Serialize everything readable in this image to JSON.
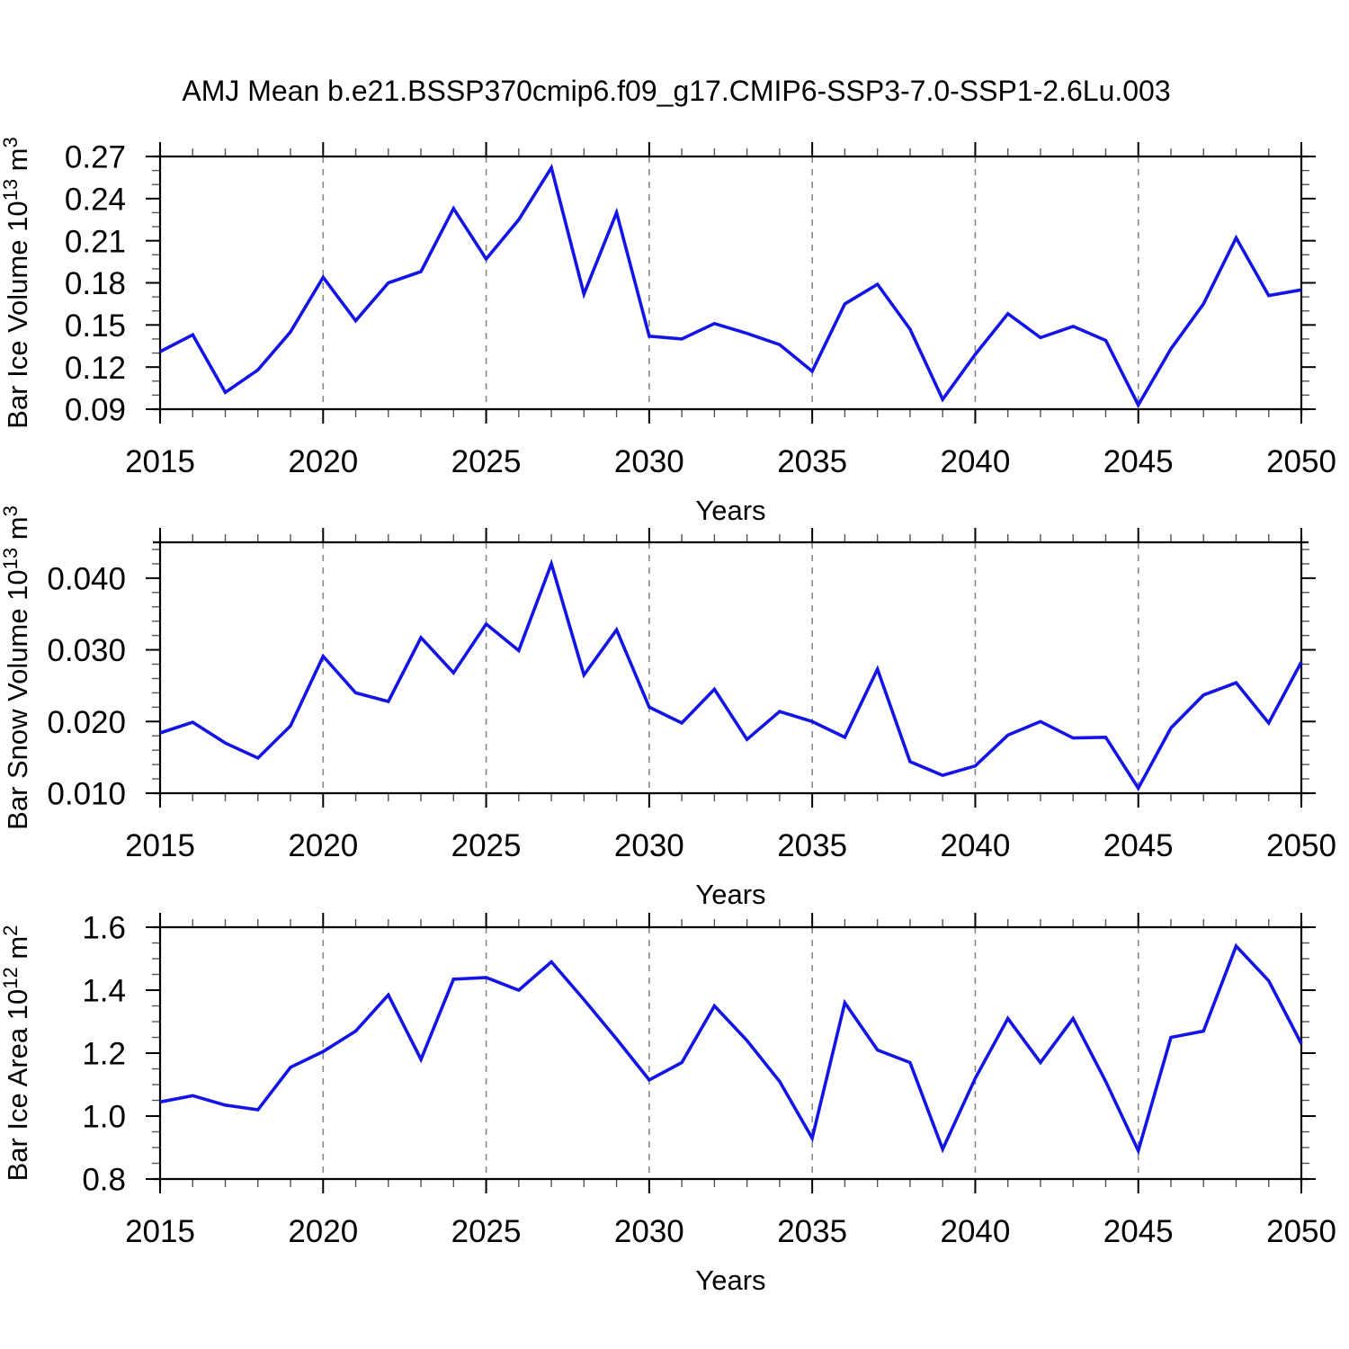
{
  "title": "AMJ Mean b.e21.BSSP370cmip6.f09_g17.CMIP6-SSP3-7.0-SSP1-2.6Lu.003",
  "colors": {
    "line": "#1414e6",
    "grid": "#888888",
    "frame": "#000000",
    "minor_tick": "#555555"
  },
  "chart_data": [
    {
      "type": "line",
      "name": "ice-volume",
      "ylabel": "Bar Ice Volume 10^13^ m^3^",
      "xlabel": "Years",
      "x": [
        2015,
        2016,
        2017,
        2018,
        2019,
        2020,
        2021,
        2022,
        2023,
        2024,
        2025,
        2026,
        2027,
        2028,
        2029,
        2030,
        2031,
        2032,
        2033,
        2034,
        2035,
        2036,
        2037,
        2038,
        2039,
        2040,
        2041,
        2042,
        2043,
        2044,
        2045,
        2046,
        2047,
        2048,
        2049,
        2050
      ],
      "values": [
        0.131,
        0.143,
        0.102,
        0.118,
        0.145,
        0.184,
        0.153,
        0.18,
        0.188,
        0.233,
        0.197,
        0.225,
        0.262,
        0.172,
        0.23,
        0.142,
        0.14,
        0.151,
        0.144,
        0.136,
        0.117,
        0.165,
        0.179,
        0.147,
        0.097,
        0.129,
        0.158,
        0.141,
        0.149,
        0.139,
        0.093,
        0.133,
        0.165,
        0.212,
        0.171,
        0.175
      ],
      "xlim": [
        2015,
        2050
      ],
      "ylim": [
        0.09,
        0.27
      ],
      "yticks": [
        0.09,
        0.12,
        0.15,
        0.18,
        0.21,
        0.24,
        0.27
      ],
      "ytick_labels": [
        "0.09",
        "0.12",
        "0.15",
        "0.18",
        "0.21",
        "0.24",
        "0.27"
      ],
      "yminor": 0.01,
      "xticks": [
        2015,
        2020,
        2025,
        2030,
        2035,
        2040,
        2045,
        2050
      ],
      "xtick_labels": [
        "2015",
        "2020",
        "2025",
        "2030",
        "2035",
        "2040",
        "2045",
        "2050"
      ],
      "xminor": 1,
      "vgrid": [
        2020,
        2025,
        2030,
        2035,
        2040,
        2045
      ],
      "grid_style": "vertical-dashed",
      "legend": "none"
    },
    {
      "type": "line",
      "name": "snow-volume",
      "ylabel": "Bar Snow Volume 10^13^ m^3^",
      "xlabel": "Years",
      "x": [
        2015,
        2016,
        2017,
        2018,
        2019,
        2020,
        2021,
        2022,
        2023,
        2024,
        2025,
        2026,
        2027,
        2028,
        2029,
        2030,
        2031,
        2032,
        2033,
        2034,
        2035,
        2036,
        2037,
        2038,
        2039,
        2040,
        2041,
        2042,
        2043,
        2044,
        2045,
        2046,
        2047,
        2048,
        2049,
        2050
      ],
      "values": [
        0.0184,
        0.0199,
        0.017,
        0.0149,
        0.0194,
        0.0291,
        0.024,
        0.0228,
        0.0317,
        0.0268,
        0.0336,
        0.0299,
        0.042,
        0.0265,
        0.0328,
        0.022,
        0.0198,
        0.0245,
        0.0175,
        0.0214,
        0.02,
        0.0178,
        0.0273,
        0.0144,
        0.0125,
        0.0138,
        0.0181,
        0.02,
        0.0177,
        0.0178,
        0.0107,
        0.0191,
        0.0237,
        0.0254,
        0.0198,
        0.0283
      ],
      "xlim": [
        2015,
        2050
      ],
      "ylim": [
        0.01,
        0.045
      ],
      "yticks": [
        0.01,
        0.02,
        0.03,
        0.04
      ],
      "ytick_labels": [
        "0.010",
        "0.020",
        "0.030",
        "0.040"
      ],
      "yminor": 0.002,
      "xticks": [
        2015,
        2020,
        2025,
        2030,
        2035,
        2040,
        2045,
        2050
      ],
      "xtick_labels": [
        "2015",
        "2020",
        "2025",
        "2030",
        "2035",
        "2040",
        "2045",
        "2050"
      ],
      "xminor": 1,
      "vgrid": [
        2020,
        2025,
        2030,
        2035,
        2040,
        2045
      ],
      "grid_style": "vertical-dashed",
      "legend": "none"
    },
    {
      "type": "line",
      "name": "ice-area",
      "ylabel": "Bar Ice Area 10^12^ m^2^",
      "xlabel": "Years",
      "x": [
        2015,
        2016,
        2017,
        2018,
        2019,
        2020,
        2021,
        2022,
        2023,
        2024,
        2025,
        2026,
        2027,
        2028,
        2029,
        2030,
        2031,
        2032,
        2033,
        2034,
        2035,
        2036,
        2037,
        2038,
        2039,
        2040,
        2041,
        2042,
        2043,
        2044,
        2045,
        2046,
        2047,
        2048,
        2049,
        2050
      ],
      "values": [
        1.045,
        1.065,
        1.035,
        1.02,
        1.155,
        1.205,
        1.27,
        1.385,
        1.18,
        1.435,
        1.44,
        1.4,
        1.49,
        1.37,
        1.245,
        1.115,
        1.17,
        1.35,
        1.24,
        1.11,
        0.93,
        1.36,
        1.21,
        1.17,
        0.895,
        1.12,
        1.31,
        1.17,
        1.31,
        1.11,
        0.89,
        1.25,
        1.27,
        1.54,
        1.43,
        1.23
      ],
      "xlim": [
        2015,
        2050
      ],
      "ylim": [
        0.8,
        1.6
      ],
      "yticks": [
        0.8,
        1.0,
        1.2,
        1.4,
        1.6
      ],
      "ytick_labels": [
        "0.8",
        "1.0",
        "1.2",
        "1.4",
        "1.6"
      ],
      "yminor": 0.05,
      "xticks": [
        2015,
        2020,
        2025,
        2030,
        2035,
        2040,
        2045,
        2050
      ],
      "xtick_labels": [
        "2015",
        "2020",
        "2025",
        "2030",
        "2035",
        "2040",
        "2045",
        "2050"
      ],
      "xminor": 1,
      "vgrid": [
        2020,
        2025,
        2030,
        2035,
        2040,
        2045
      ],
      "grid_style": "vertical-dashed",
      "legend": "none"
    }
  ]
}
